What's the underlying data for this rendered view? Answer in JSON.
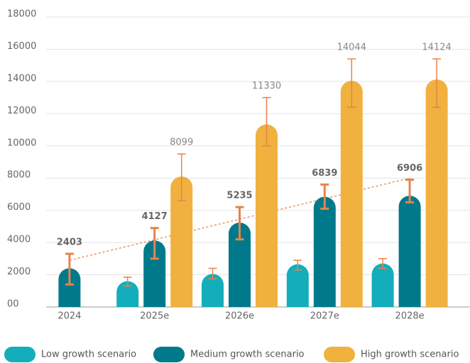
{
  "chart_data": {
    "type": "bar",
    "categories": [
      "2024",
      "2025e",
      "2026e",
      "2027e",
      "2028e"
    ],
    "series": [
      {
        "name": "Low growth scenario",
        "color": "#14adbb",
        "values": [
          null,
          1600,
          2050,
          2650,
          2700
        ],
        "error_bars": [
          null,
          [
            1300,
            1850
          ],
          [
            1750,
            2400
          ],
          [
            2300,
            2900
          ],
          [
            2400,
            3000
          ]
        ],
        "show_labels": false
      },
      {
        "name": "Medium growth scenario",
        "color": "#007a8a",
        "values": [
          2403,
          4127,
          5235,
          6839,
          6906
        ],
        "error_bars": [
          [
            1400,
            3300
          ],
          [
            3000,
            4900
          ],
          [
            4200,
            6200
          ],
          [
            6100,
            7600
          ],
          [
            6500,
            7900
          ]
        ],
        "show_labels": true,
        "label_bold": true
      },
      {
        "name": "High growth scenario",
        "color": "#f0b13f",
        "values": [
          null,
          8099,
          11330,
          14044,
          14124
        ],
        "error_bars": [
          null,
          [
            6600,
            9500
          ],
          [
            10000,
            13000
          ],
          [
            12400,
            15400
          ],
          [
            12400,
            15400
          ]
        ],
        "show_labels": true,
        "label_bold": false
      }
    ],
    "error_color": "#e8834a",
    "trend": {
      "values": [
        2900,
        8000
      ],
      "color": "#e8834a"
    },
    "ylim": [
      0,
      18000
    ],
    "yticks": [
      {
        "value": 0,
        "label": "00"
      },
      2000,
      4000,
      6000,
      8000,
      10000,
      12000,
      14000,
      16000,
      18000
    ],
    "grid": true
  }
}
